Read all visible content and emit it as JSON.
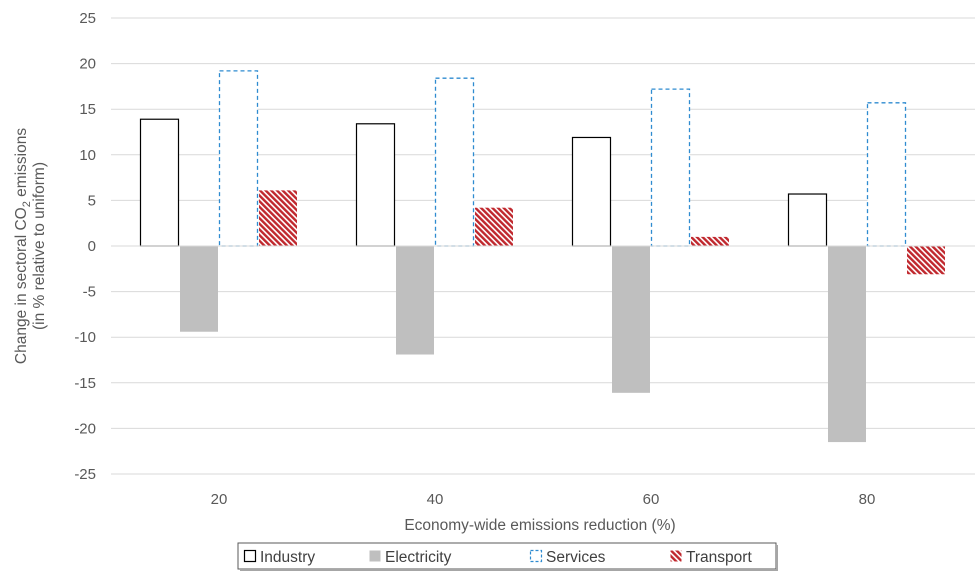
{
  "chart_data": {
    "type": "bar",
    "categories": [
      "20",
      "40",
      "60",
      "80"
    ],
    "series": [
      {
        "name": "Industry",
        "values": [
          13.9,
          13.4,
          11.9,
          5.7
        ],
        "style": "outline",
        "color": "#000000"
      },
      {
        "name": "Electricity",
        "values": [
          -9.4,
          -11.9,
          -16.1,
          -21.5
        ],
        "style": "solid",
        "color": "#bfbfbf"
      },
      {
        "name": "Services",
        "values": [
          19.2,
          18.4,
          17.2,
          15.7
        ],
        "style": "dashed-outline",
        "color": "#2e8bd0"
      },
      {
        "name": "Transport",
        "values": [
          6.1,
          4.2,
          1.0,
          -3.1
        ],
        "style": "hatched",
        "color": "#c0272d"
      }
    ],
    "xlabel": "Economy-wide emissions reduction (%)",
    "ylabel_line1_pre": "Change in sectoral CO",
    "ylabel_line1_sub": "2",
    "ylabel_line1_post": " emissions",
    "ylabel_line2": "(in % relative to uniform)",
    "ylim": [
      -25,
      25
    ],
    "yticks": [
      25,
      20,
      15,
      10,
      5,
      0,
      -5,
      -10,
      -15,
      -20,
      -25
    ],
    "grid": true,
    "legend_position": "bottom-center"
  }
}
